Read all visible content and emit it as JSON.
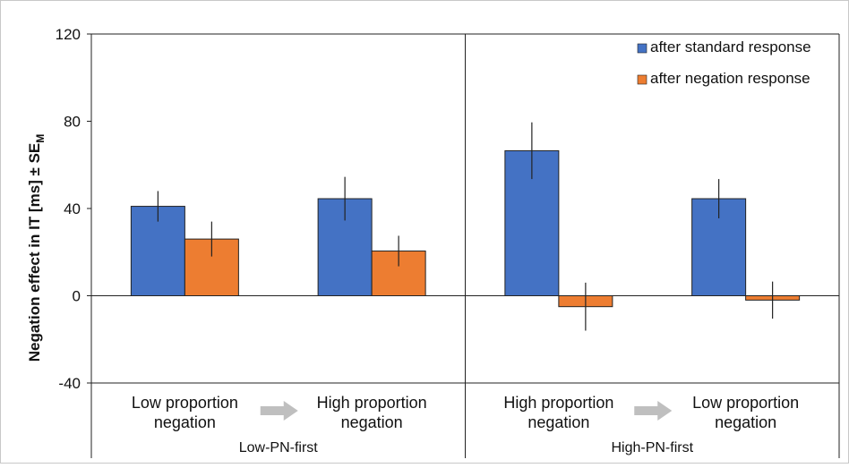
{
  "chart_data": {
    "type": "bar",
    "ylabel": "Negation effect in IT [ms] ± SE",
    "ylabel_subscript": "M",
    "ylim": [
      -40,
      120
    ],
    "yticks": [
      120,
      80,
      40,
      0,
      -40
    ],
    "ytick_labels": [
      "120",
      "80",
      "40",
      "0",
      "-40"
    ],
    "grid": false,
    "legend_position": "top-right",
    "groups": [
      {
        "name": "Low-PN-first",
        "categories": [
          {
            "line1": "Low proportion",
            "line2": "negation"
          },
          {
            "line1": "High proportion",
            "line2": "negation"
          }
        ]
      },
      {
        "name": "High-PN-first",
        "categories": [
          {
            "line1": "High proportion",
            "line2": "negation"
          },
          {
            "line1": "Low proportion",
            "line2": "negation"
          }
        ]
      }
    ],
    "series": [
      {
        "name": "after standard response",
        "color": "#4472C4",
        "values": [
          41,
          44.5,
          66.5,
          44.5
        ],
        "errors": [
          7,
          10,
          13,
          9
        ]
      },
      {
        "name": "after negation response",
        "color": "#ED7D31",
        "values": [
          26,
          20.5,
          -5,
          -2
        ],
        "errors": [
          8,
          7,
          11,
          8.5
        ]
      }
    ]
  }
}
